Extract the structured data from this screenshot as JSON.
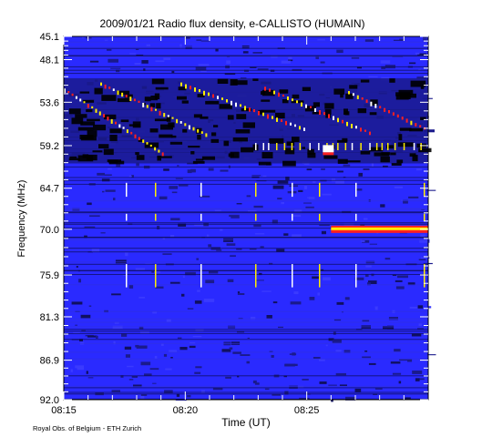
{
  "chart_data": {
    "type": "heatmap",
    "title": "2009/01/21  Radio flux density, e-CALLISTO (HUMAIN)",
    "xlabel": "Time (UT)",
    "ylabel": "Frequency (MHz)",
    "x_ticks": [
      "08:15",
      "08:20",
      "08:25"
    ],
    "y_ticks": [
      "45.1",
      "48.1",
      "53.6",
      "59.2",
      "64.7",
      "70.0",
      "75.9",
      "81.3",
      "86.9",
      "92.0"
    ],
    "xlim": [
      "08:15",
      "08:30"
    ],
    "ylim_mhz": [
      45.1,
      92.0
    ],
    "y_inverted": true,
    "colormap": [
      "#000000",
      "#1a1a8c",
      "#2a2aff",
      "#ff2020",
      "#ffee00",
      "#ffffff"
    ],
    "features": [
      {
        "label": "drifting burst lanes",
        "time_range": [
          "08:15",
          "08:30"
        ],
        "freq_range_mhz": [
          50.5,
          61.5
        ]
      },
      {
        "label": "continuous band",
        "time_range": [
          "08:26",
          "08:30"
        ],
        "freq_mhz": 70.0
      },
      {
        "label": "saturated patch",
        "time": "08:26",
        "freq_mhz": 59.6
      }
    ]
  },
  "footer": {
    "credit": "Royal Obs. of Belgium - ETH Zurich"
  }
}
